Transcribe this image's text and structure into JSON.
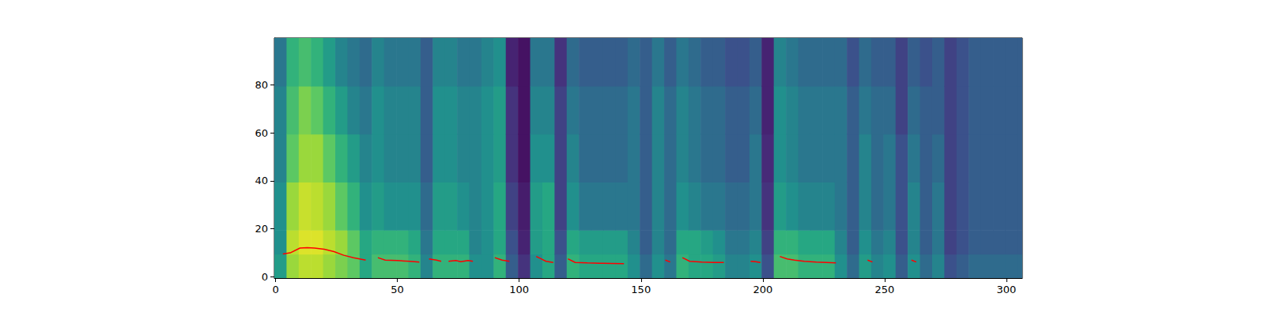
{
  "chart_data": {
    "type": "heatmap",
    "xlim": [
      -0.5,
      306.5
    ],
    "xticks": [
      0,
      50,
      100,
      150,
      200,
      250,
      300
    ],
    "ylim": [
      -0.5,
      99.5
    ],
    "yticks": [
      0,
      20,
      40,
      60,
      80
    ],
    "grid": false,
    "heatmap": {
      "color": "viridis",
      "zlim": [
        0,
        1
      ],
      "x_edges": [
        -0.5,
        4.5,
        9.5,
        14.5,
        19.5,
        24.5,
        29.5,
        34.5,
        39.5,
        44.5,
        49.5,
        54.5,
        59.5,
        64.5,
        69.5,
        74.5,
        79.5,
        84.5,
        89.5,
        94.5,
        99.5,
        104.5,
        109.5,
        114.5,
        119.5,
        124.5,
        129.5,
        134.5,
        139.5,
        144.5,
        149.5,
        154.5,
        159.5,
        164.5,
        169.5,
        174.5,
        179.5,
        184.5,
        189.5,
        194.5,
        199.5,
        204.5,
        209.5,
        214.5,
        219.5,
        224.5,
        229.5,
        234.5,
        239.5,
        244.5,
        249.5,
        254.5,
        259.5,
        264.5,
        269.5,
        274.5,
        279.5,
        284.5,
        289.5,
        294.5,
        299.5,
        304.5,
        306.5
      ],
      "y_edges": [
        -0.5,
        9.5,
        19.5,
        39.5,
        59.5,
        79.5,
        99.5
      ],
      "cells": [
        [
          0.55,
          0.5,
          0.5,
          0.45,
          0.45,
          0.4
        ],
        [
          0.85,
          0.9,
          0.85,
          0.75,
          0.7,
          0.65
        ],
        [
          0.9,
          0.95,
          0.92,
          0.85,
          0.8,
          0.7
        ],
        [
          0.9,
          0.95,
          0.9,
          0.85,
          0.75,
          0.65
        ],
        [
          0.85,
          0.9,
          0.85,
          0.75,
          0.65,
          0.55
        ],
        [
          0.8,
          0.85,
          0.75,
          0.65,
          0.55,
          0.45
        ],
        [
          0.75,
          0.75,
          0.65,
          0.55,
          0.45,
          0.4
        ],
        [
          0.6,
          0.6,
          0.5,
          0.45,
          0.4,
          0.35
        ],
        [
          0.7,
          0.65,
          0.55,
          0.5,
          0.5,
          0.45
        ],
        [
          0.7,
          0.65,
          0.5,
          0.45,
          0.45,
          0.4
        ],
        [
          0.7,
          0.65,
          0.5,
          0.45,
          0.45,
          0.4
        ],
        [
          0.65,
          0.6,
          0.5,
          0.45,
          0.45,
          0.4
        ],
        [
          0.45,
          0.4,
          0.35,
          0.3,
          0.3,
          0.3
        ],
        [
          0.65,
          0.6,
          0.55,
          0.5,
          0.5,
          0.45
        ],
        [
          0.65,
          0.6,
          0.55,
          0.5,
          0.5,
          0.45
        ],
        [
          0.65,
          0.6,
          0.5,
          0.45,
          0.45,
          0.4
        ],
        [
          0.5,
          0.45,
          0.45,
          0.45,
          0.45,
          0.4
        ],
        [
          0.5,
          0.5,
          0.5,
          0.5,
          0.5,
          0.45
        ],
        [
          0.65,
          0.6,
          0.6,
          0.55,
          0.55,
          0.5
        ],
        [
          0.3,
          0.25,
          0.2,
          0.15,
          0.15,
          0.1
        ],
        [
          0.15,
          0.1,
          0.08,
          0.05,
          0.05,
          0.05
        ],
        [
          0.5,
          0.55,
          0.55,
          0.5,
          0.45,
          0.4
        ],
        [
          0.6,
          0.6,
          0.6,
          0.5,
          0.45,
          0.4
        ],
        [
          0.3,
          0.25,
          0.2,
          0.2,
          0.2,
          0.15
        ],
        [
          0.65,
          0.6,
          0.5,
          0.45,
          0.4,
          0.35
        ],
        [
          0.6,
          0.55,
          0.4,
          0.35,
          0.35,
          0.3
        ],
        [
          0.6,
          0.55,
          0.4,
          0.35,
          0.35,
          0.3
        ],
        [
          0.6,
          0.55,
          0.4,
          0.35,
          0.35,
          0.3
        ],
        [
          0.6,
          0.55,
          0.4,
          0.35,
          0.35,
          0.3
        ],
        [
          0.5,
          0.45,
          0.4,
          0.4,
          0.4,
          0.35
        ],
        [
          0.35,
          0.3,
          0.3,
          0.3,
          0.3,
          0.3
        ],
        [
          0.5,
          0.45,
          0.45,
          0.45,
          0.45,
          0.4
        ],
        [
          0.4,
          0.35,
          0.35,
          0.35,
          0.35,
          0.3
        ],
        [
          0.65,
          0.6,
          0.5,
          0.45,
          0.45,
          0.4
        ],
        [
          0.6,
          0.6,
          0.45,
          0.4,
          0.4,
          0.35
        ],
        [
          0.6,
          0.55,
          0.4,
          0.35,
          0.35,
          0.3
        ],
        [
          0.55,
          0.5,
          0.4,
          0.35,
          0.35,
          0.3
        ],
        [
          0.45,
          0.4,
          0.35,
          0.3,
          0.3,
          0.25
        ],
        [
          0.45,
          0.4,
          0.35,
          0.3,
          0.3,
          0.25
        ],
        [
          0.5,
          0.45,
          0.4,
          0.4,
          0.35,
          0.3
        ],
        [
          0.25,
          0.2,
          0.15,
          0.12,
          0.1,
          0.1
        ],
        [
          0.7,
          0.65,
          0.55,
          0.5,
          0.5,
          0.45
        ],
        [
          0.7,
          0.65,
          0.5,
          0.45,
          0.45,
          0.4
        ],
        [
          0.65,
          0.6,
          0.45,
          0.4,
          0.4,
          0.35
        ],
        [
          0.65,
          0.6,
          0.45,
          0.4,
          0.4,
          0.35
        ],
        [
          0.65,
          0.6,
          0.45,
          0.4,
          0.4,
          0.35
        ],
        [
          0.5,
          0.45,
          0.4,
          0.4,
          0.4,
          0.35
        ],
        [
          0.35,
          0.3,
          0.3,
          0.3,
          0.3,
          0.25
        ],
        [
          0.55,
          0.5,
          0.45,
          0.45,
          0.4,
          0.35
        ],
        [
          0.45,
          0.4,
          0.35,
          0.35,
          0.35,
          0.3
        ],
        [
          0.5,
          0.45,
          0.4,
          0.4,
          0.35,
          0.3
        ],
        [
          0.3,
          0.25,
          0.25,
          0.25,
          0.2,
          0.2
        ],
        [
          0.5,
          0.45,
          0.45,
          0.4,
          0.35,
          0.3
        ],
        [
          0.35,
          0.3,
          0.3,
          0.3,
          0.3,
          0.25
        ],
        [
          0.45,
          0.4,
          0.4,
          0.35,
          0.3,
          0.3
        ],
        [
          0.25,
          0.2,
          0.2,
          0.2,
          0.2,
          0.2
        ],
        [
          0.3,
          0.25,
          0.25,
          0.25,
          0.25,
          0.25
        ],
        [
          0.35,
          0.3,
          0.3,
          0.3,
          0.3,
          0.3
        ],
        [
          0.35,
          0.3,
          0.3,
          0.3,
          0.3,
          0.3
        ],
        [
          0.35,
          0.3,
          0.3,
          0.3,
          0.3,
          0.3
        ],
        [
          0.35,
          0.3,
          0.3,
          0.3,
          0.3,
          0.3
        ],
        [
          0.35,
          0.3,
          0.3,
          0.3,
          0.3,
          0.3
        ]
      ]
    },
    "line": {
      "type": "line",
      "color": "#ff0000",
      "x": [
        3,
        6,
        10,
        13,
        16,
        20,
        24,
        28,
        32,
        37,
        40,
        42,
        45,
        50,
        55,
        59,
        61,
        63,
        66,
        68,
        70,
        71,
        74,
        76,
        79,
        81,
        85,
        90,
        93,
        96,
        100,
        107,
        109,
        111,
        114,
        117,
        120,
        123,
        128,
        133,
        138,
        143,
        150,
        160,
        162,
        165,
        167,
        170,
        175,
        180,
        184,
        190,
        195,
        197,
        199,
        203,
        207,
        210,
        213,
        217,
        222,
        226,
        230,
        237,
        243,
        245,
        253,
        261,
        263
      ],
      "y": [
        9.5,
        10,
        12,
        12.2,
        12,
        11.5,
        10.5,
        9,
        8,
        7,
        null,
        8,
        7,
        6.8,
        6.5,
        6.2,
        null,
        7.5,
        7,
        6.5,
        null,
        6.5,
        6.8,
        6.3,
        6.8,
        6.5,
        null,
        8,
        7,
        6.5,
        null,
        8.5,
        7.5,
        6.5,
        6,
        null,
        7.5,
        6,
        5.8,
        5.7,
        5.6,
        5.5,
        null,
        7,
        6.2,
        null,
        8,
        6.5,
        6.2,
        6,
        6,
        null,
        6.5,
        6.3,
        6,
        null,
        8.5,
        7.5,
        7,
        6.5,
        6.2,
        6,
        5.8,
        null,
        7,
        6.2,
        null,
        7,
        6.2
      ]
    }
  }
}
